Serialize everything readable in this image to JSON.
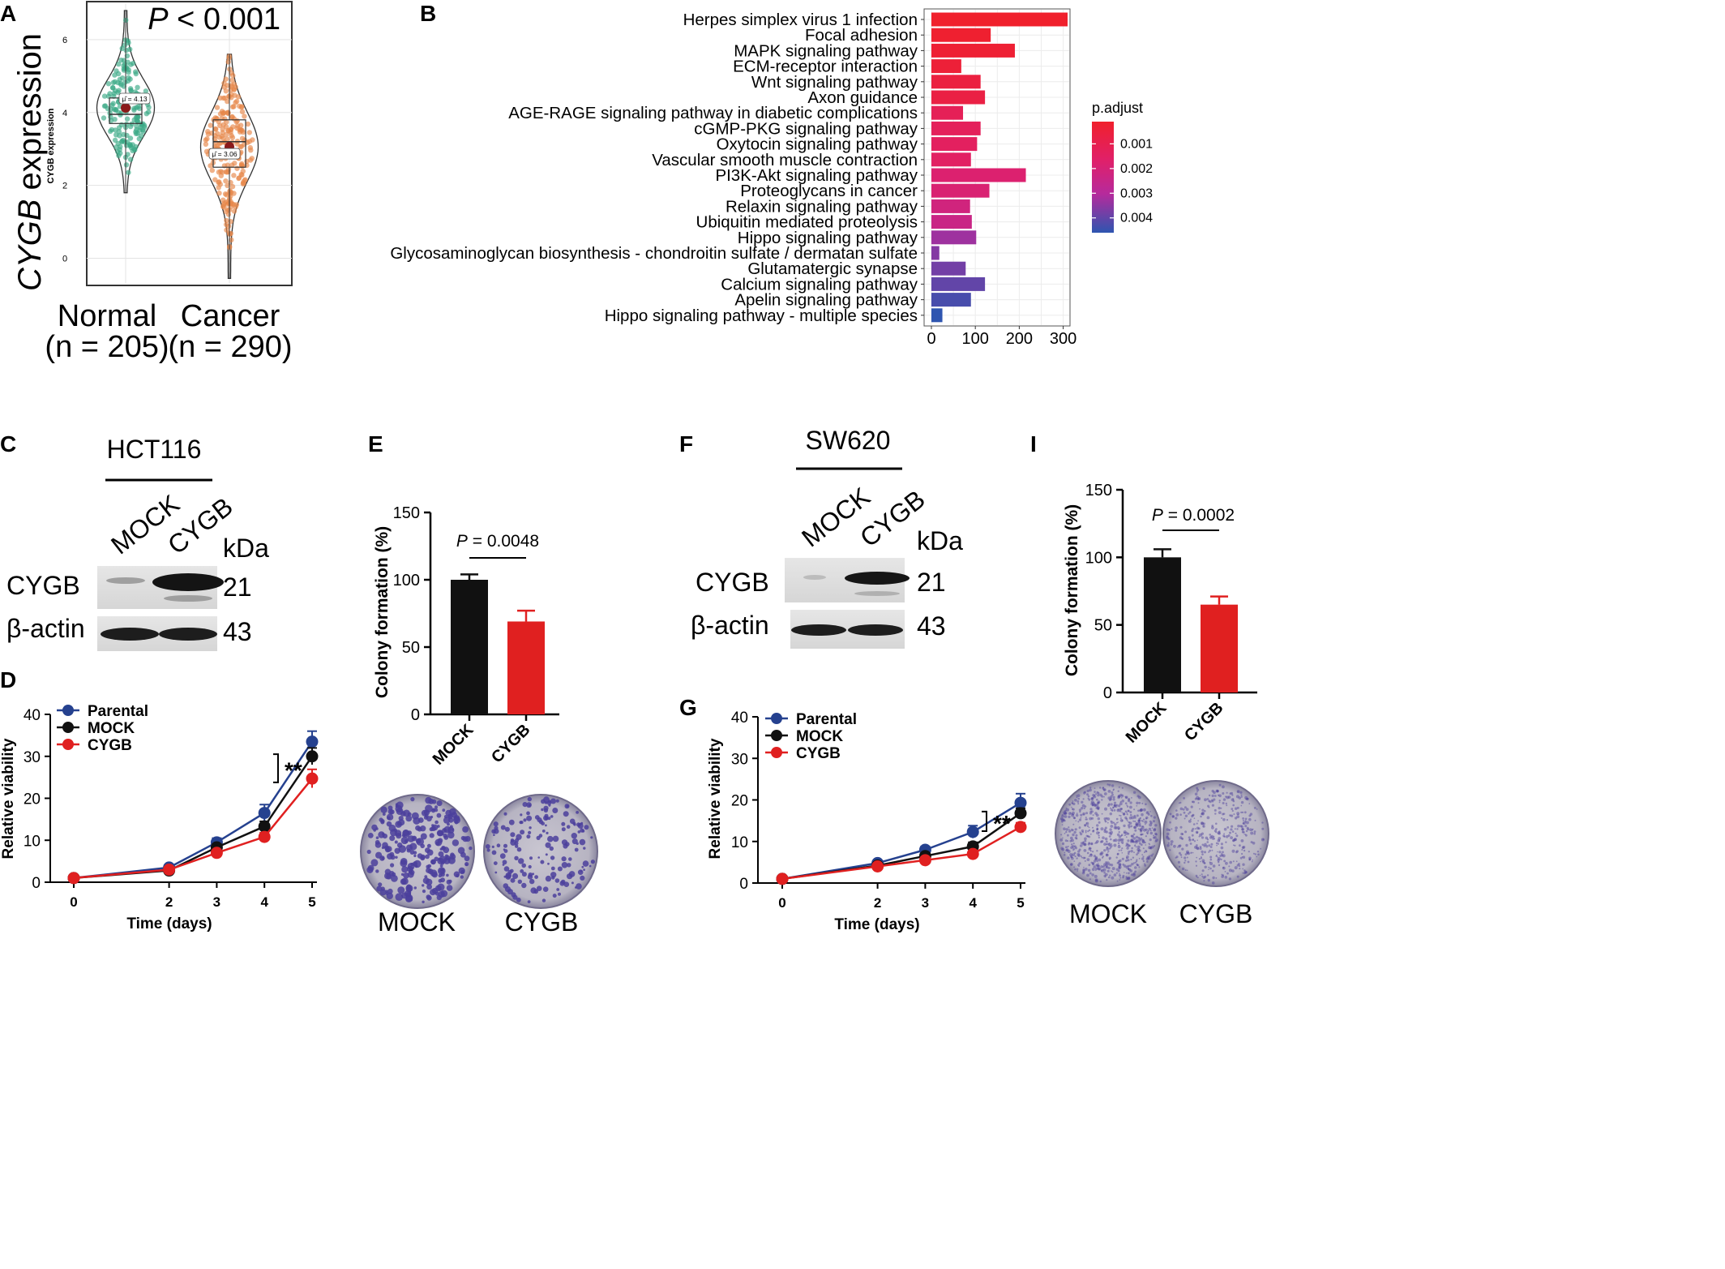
{
  "colors": {
    "normal": "#3aa985",
    "cancer": "#e7874a",
    "parental": "#25418f",
    "mock": "#111111",
    "cygb": "#e02020",
    "grad_high": "#f0202c",
    "grad_mid1": "#e0206a",
    "grad_mid2": "#b62a9c",
    "grad_low": "#2e55b0"
  },
  "panels": {
    "A": {
      "letter": "A",
      "pvalue_italic": "P",
      "pvalue_rest": " < 0.001",
      "ylabel_italic": "CYGB",
      "ylabel_rest": " expression",
      "inner_ylabel": "CYGB expression",
      "groups": [
        {
          "name": "Normal",
          "n": "(n = 205)",
          "mean_label": "μ̂ = 4.13"
        },
        {
          "name": "Cancer",
          "n": "(n = 290)",
          "mean_label": "μ̂ = 3.06"
        }
      ]
    },
    "B": {
      "letter": "B",
      "legend_title": "p.adjust"
    },
    "C": {
      "letter": "C",
      "cell_line": "HCT116",
      "lanes": [
        "MOCK",
        "CYGB"
      ],
      "kda": "kDa",
      "rows": [
        {
          "protein": "CYGB",
          "size": "21"
        },
        {
          "protein": "β-actin",
          "size": "43"
        }
      ]
    },
    "D": {
      "letter": "D",
      "xlabel": "Time (days)",
      "ylabel": "Relative viability",
      "legend": [
        "Parental",
        "MOCK",
        "CYGB"
      ],
      "sig": "**"
    },
    "E": {
      "letter": "E",
      "ylabel": "Colony formation (%)",
      "pvalue_italic": "P",
      "pvalue_rest": " = 0.0048",
      "plate_labels": [
        "MOCK",
        "CYGB"
      ]
    },
    "F": {
      "letter": "F",
      "cell_line": "SW620",
      "lanes": [
        "MOCK",
        "CYGB"
      ],
      "kda": "kDa",
      "rows": [
        {
          "protein": "CYGB",
          "size": "21"
        },
        {
          "protein": "β-actin",
          "size": "43"
        }
      ]
    },
    "G": {
      "letter": "G",
      "xlabel": "Time (days)",
      "ylabel": "Relative viability",
      "legend": [
        "Parental",
        "MOCK",
        "CYGB"
      ],
      "sig": "**"
    },
    "I": {
      "letter": "I",
      "ylabel": "Colony formation (%)",
      "pvalue_italic": "P",
      "pvalue_rest": " = 0.0002",
      "plate_labels": [
        "MOCK",
        "CYGB"
      ]
    }
  },
  "chart_data": [
    {
      "panel": "A",
      "type": "violin",
      "categories": [
        "Normal",
        "Cancer"
      ],
      "ylim": [
        -0.7,
        7.0
      ],
      "yticks": [
        0,
        2,
        4,
        6
      ],
      "series": [
        {
          "name": "Normal",
          "n": 205,
          "mean": 4.13,
          "median": 3.95,
          "q1": 3.7,
          "q3": 4.4,
          "min": 1.8,
          "max": 6.8
        },
        {
          "name": "Cancer",
          "n": 290,
          "mean": 3.06,
          "median": 3.2,
          "q1": 2.5,
          "q3": 3.8,
          "min": -0.55,
          "max": 5.6
        }
      ]
    },
    {
      "panel": "B",
      "type": "bar",
      "orientation": "horizontal",
      "categories": [
        "Herpes simplex virus 1 infection",
        "Focal adhesion",
        "MAPK signaling pathway",
        "ECM-receptor interaction",
        "Wnt signaling pathway",
        "Axon guidance",
        "AGE-RAGE signaling pathway in diabetic complications",
        "cGMP-PKG signaling pathway",
        "Oxytocin signaling pathway",
        "Vascular smooth muscle contraction",
        "PI3K-Akt signaling pathway",
        "Proteoglycans in cancer",
        "Relaxin signaling pathway",
        "Ubiquitin mediated proteolysis",
        "Hippo signaling pathway",
        "Glycosaminoglycan biosynthesis - chondroitin sulfate / dermatan sulfate",
        "Glutamatergic synapse",
        "Calcium signaling pathway",
        "Apelin signaling pathway",
        "Hippo signaling pathway - multiple species"
      ],
      "values": [
        310,
        135,
        190,
        68,
        112,
        122,
        72,
        112,
        104,
        90,
        215,
        132,
        88,
        92,
        102,
        18,
        78,
        122,
        90,
        25
      ],
      "p_adjust": [
        0.0001,
        0.0002,
        0.0003,
        0.0004,
        0.0006,
        0.0007,
        0.0012,
        0.0013,
        0.0014,
        0.0015,
        0.0018,
        0.0019,
        0.0022,
        0.0024,
        0.0033,
        0.0036,
        0.0038,
        0.004,
        0.0043,
        0.0046
      ],
      "xlim": [
        0,
        320
      ],
      "xticks": [
        0,
        100,
        200,
        300
      ],
      "colorbar": {
        "title": "p.adjust",
        "ticks": [
          0.001,
          0.002,
          0.003,
          0.004
        ],
        "tick_labels": [
          "0.001",
          "0.002",
          "0.003",
          "0.004"
        ],
        "range": [
          0.0001,
          0.0046
        ]
      }
    },
    {
      "panel": "D",
      "type": "line",
      "x": [
        0,
        2,
        3,
        4,
        5
      ],
      "xlabel": "Time (days)",
      "ylabel": "Relative viability",
      "ylim": [
        0,
        40
      ],
      "yticks": [
        0,
        10,
        20,
        30,
        40
      ],
      "series": [
        {
          "name": "Parental",
          "values": [
            1.0,
            3.5,
            9.5,
            16.5,
            33.5
          ],
          "errors": [
            0.2,
            0.4,
            1.0,
            2.0,
            2.5
          ]
        },
        {
          "name": "MOCK",
          "values": [
            1.0,
            2.8,
            8.3,
            13.3,
            30.0
          ],
          "errors": [
            0.2,
            0.3,
            0.8,
            1.2,
            2.0
          ]
        },
        {
          "name": "CYGB",
          "values": [
            1.0,
            3.0,
            7.0,
            10.8,
            24.7
          ],
          "errors": [
            0.2,
            0.3,
            0.6,
            1.0,
            2.2
          ]
        }
      ]
    },
    {
      "panel": "E",
      "type": "bar",
      "categories": [
        "MOCK",
        "CYGB"
      ],
      "values": [
        100,
        69
      ],
      "errors": [
        4,
        8
      ],
      "ylabel": "Colony formation (%)",
      "ylim": [
        0,
        150
      ],
      "yticks": [
        0,
        50,
        100,
        150
      ],
      "pvalue": "P = 0.0048"
    },
    {
      "panel": "G",
      "type": "line",
      "x": [
        0,
        2,
        3,
        4,
        5
      ],
      "xlabel": "Time (days)",
      "ylabel": "Relative viability",
      "ylim": [
        0,
        40
      ],
      "yticks": [
        0,
        10,
        20,
        30,
        40
      ],
      "series": [
        {
          "name": "Parental",
          "values": [
            1.0,
            4.8,
            8.0,
            12.3,
            19.3
          ],
          "errors": [
            0.2,
            0.5,
            0.8,
            1.5,
            2.2
          ]
        },
        {
          "name": "MOCK",
          "values": [
            1.0,
            4.2,
            6.5,
            8.8,
            16.8
          ],
          "errors": [
            0.2,
            0.4,
            0.6,
            1.0,
            1.2
          ]
        },
        {
          "name": "CYGB",
          "values": [
            1.0,
            4.0,
            5.5,
            7.0,
            13.5
          ],
          "errors": [
            0.2,
            0.4,
            0.5,
            0.8,
            1.0
          ]
        }
      ]
    },
    {
      "panel": "I",
      "type": "bar",
      "categories": [
        "MOCK",
        "CYGB"
      ],
      "values": [
        100,
        65
      ],
      "errors": [
        6,
        6
      ],
      "ylabel": "Colony formation (%)",
      "ylim": [
        0,
        150
      ],
      "yticks": [
        0,
        50,
        100,
        150
      ],
      "pvalue": "P = 0.0002"
    }
  ]
}
